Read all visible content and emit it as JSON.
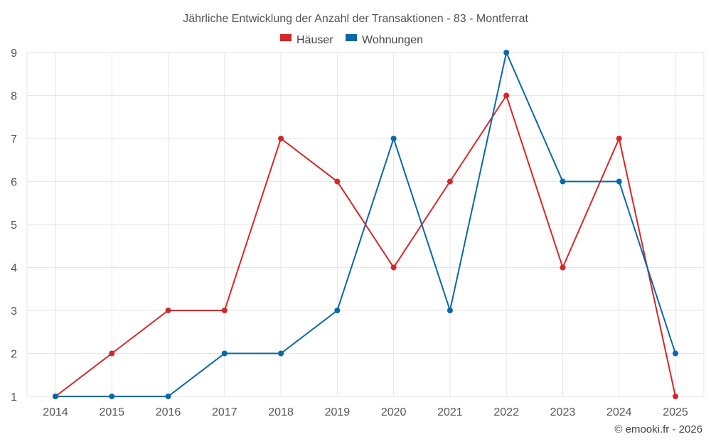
{
  "chart_data": {
    "type": "line",
    "title": "Jährliche Entwicklung der Anzahl der Transaktionen - 83 - Montferrat",
    "categories": [
      "2014",
      "2015",
      "2016",
      "2017",
      "2018",
      "2019",
      "2020",
      "2021",
      "2022",
      "2023",
      "2024",
      "2025"
    ],
    "series": [
      {
        "name": "Häuser",
        "color": "#d62728",
        "values": [
          1,
          2,
          3,
          3,
          7,
          6,
          4,
          6,
          8,
          4,
          7,
          1
        ]
      },
      {
        "name": "Wohnungen",
        "color": "#0868a8",
        "values": [
          1,
          1,
          1,
          2,
          2,
          3,
          7,
          3,
          9,
          6,
          6,
          2
        ]
      }
    ],
    "yticks": [
      1,
      2,
      3,
      4,
      5,
      6,
      7,
      8,
      9
    ],
    "ylim": [
      1,
      9
    ],
    "xlabel": "",
    "ylabel": "",
    "grid": true,
    "legend_position": "top-center",
    "credit": "© emooki.fr - 2026"
  }
}
